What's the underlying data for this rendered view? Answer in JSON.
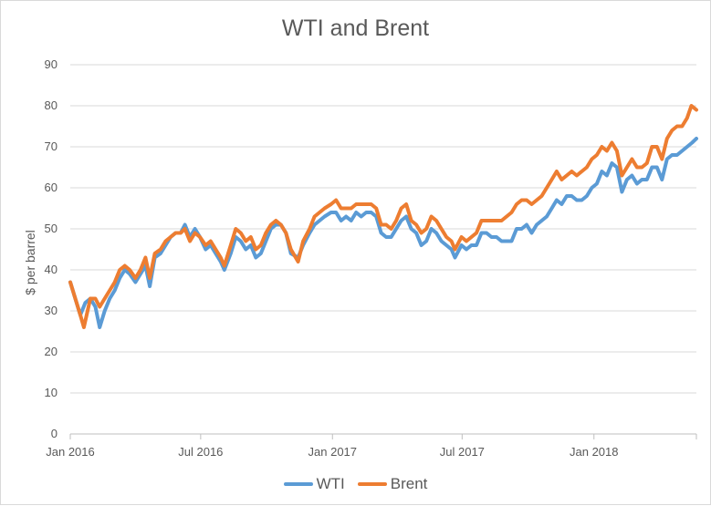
{
  "chart_data": {
    "type": "line",
    "title": "WTI and Brent",
    "xlabel": "",
    "ylabel": "$ per barrel",
    "ylim": [
      0,
      90
    ],
    "yticks": [
      "0",
      "10",
      "20",
      "30",
      "40",
      "50",
      "60",
      "70",
      "80",
      "90"
    ],
    "xticks": [
      "Jan 2016",
      "Jul 2016",
      "Jan 2017",
      "Jul 2017",
      "Jan 2018"
    ],
    "xtick_dates": [
      "2016-01-01",
      "2016-07-01",
      "2017-01-01",
      "2017-07-01",
      "2018-01-01"
    ],
    "xlim": [
      "2016-01-01",
      "2018-05-24"
    ],
    "grid": true,
    "legend_position": "bottom",
    "series": [
      {
        "name": "WTI",
        "color": "#5b9bd5",
        "points": [
          [
            "2016-01-01",
            37
          ],
          [
            "2016-01-08",
            33
          ],
          [
            "2016-01-15",
            29
          ],
          [
            "2016-01-22",
            32
          ],
          [
            "2016-01-29",
            33
          ],
          [
            "2016-02-05",
            31
          ],
          [
            "2016-02-11",
            26
          ],
          [
            "2016-02-18",
            30
          ],
          [
            "2016-02-25",
            33
          ],
          [
            "2016-03-03",
            35
          ],
          [
            "2016-03-10",
            38
          ],
          [
            "2016-03-17",
            40
          ],
          [
            "2016-03-24",
            39
          ],
          [
            "2016-04-01",
            37
          ],
          [
            "2016-04-08",
            39
          ],
          [
            "2016-04-15",
            41
          ],
          [
            "2016-04-21",
            36
          ],
          [
            "2016-04-28",
            43
          ],
          [
            "2016-05-06",
            44
          ],
          [
            "2016-05-13",
            46
          ],
          [
            "2016-05-20",
            48
          ],
          [
            "2016-05-27",
            49
          ],
          [
            "2016-06-03",
            49
          ],
          [
            "2016-06-09",
            51
          ],
          [
            "2016-06-16",
            48
          ],
          [
            "2016-06-23",
            50
          ],
          [
            "2016-06-30",
            48
          ],
          [
            "2016-07-08",
            45
          ],
          [
            "2016-07-15",
            46
          ],
          [
            "2016-07-22",
            44
          ],
          [
            "2016-07-29",
            42
          ],
          [
            "2016-08-03",
            40
          ],
          [
            "2016-08-12",
            44
          ],
          [
            "2016-08-19",
            48
          ],
          [
            "2016-08-26",
            47
          ],
          [
            "2016-09-02",
            45
          ],
          [
            "2016-09-09",
            46
          ],
          [
            "2016-09-16",
            43
          ],
          [
            "2016-09-23",
            44
          ],
          [
            "2016-09-30",
            47
          ],
          [
            "2016-10-07",
            50
          ],
          [
            "2016-10-14",
            51
          ],
          [
            "2016-10-21",
            51
          ],
          [
            "2016-10-28",
            49
          ],
          [
            "2016-11-04",
            44
          ],
          [
            "2016-11-14",
            43
          ],
          [
            "2016-11-21",
            46
          ],
          [
            "2016-11-30",
            49
          ],
          [
            "2016-12-07",
            51
          ],
          [
            "2016-12-14",
            52
          ],
          [
            "2016-12-21",
            53
          ],
          [
            "2016-12-30",
            54
          ],
          [
            "2017-01-06",
            54
          ],
          [
            "2017-01-13",
            52
          ],
          [
            "2017-01-20",
            53
          ],
          [
            "2017-01-27",
            52
          ],
          [
            "2017-02-03",
            54
          ],
          [
            "2017-02-10",
            53
          ],
          [
            "2017-02-17",
            54
          ],
          [
            "2017-02-24",
            54
          ],
          [
            "2017-03-03",
            53
          ],
          [
            "2017-03-10",
            49
          ],
          [
            "2017-03-17",
            48
          ],
          [
            "2017-03-24",
            48
          ],
          [
            "2017-03-31",
            50
          ],
          [
            "2017-04-07",
            52
          ],
          [
            "2017-04-14",
            53
          ],
          [
            "2017-04-21",
            50
          ],
          [
            "2017-04-28",
            49
          ],
          [
            "2017-05-05",
            46
          ],
          [
            "2017-05-12",
            47
          ],
          [
            "2017-05-19",
            50
          ],
          [
            "2017-05-26",
            49
          ],
          [
            "2017-06-02",
            47
          ],
          [
            "2017-06-09",
            46
          ],
          [
            "2017-06-16",
            45
          ],
          [
            "2017-06-21",
            43
          ],
          [
            "2017-06-30",
            46
          ],
          [
            "2017-07-07",
            45
          ],
          [
            "2017-07-14",
            46
          ],
          [
            "2017-07-21",
            46
          ],
          [
            "2017-07-28",
            49
          ],
          [
            "2017-08-04",
            49
          ],
          [
            "2017-08-11",
            48
          ],
          [
            "2017-08-18",
            48
          ],
          [
            "2017-08-25",
            47
          ],
          [
            "2017-09-01",
            47
          ],
          [
            "2017-09-08",
            47
          ],
          [
            "2017-09-15",
            50
          ],
          [
            "2017-09-22",
            50
          ],
          [
            "2017-09-29",
            51
          ],
          [
            "2017-10-06",
            49
          ],
          [
            "2017-10-13",
            51
          ],
          [
            "2017-10-20",
            52
          ],
          [
            "2017-10-27",
            53
          ],
          [
            "2017-11-03",
            55
          ],
          [
            "2017-11-10",
            57
          ],
          [
            "2017-11-17",
            56
          ],
          [
            "2017-11-24",
            58
          ],
          [
            "2017-12-01",
            58
          ],
          [
            "2017-12-08",
            57
          ],
          [
            "2017-12-15",
            57
          ],
          [
            "2017-12-22",
            58
          ],
          [
            "2017-12-29",
            60
          ],
          [
            "2018-01-05",
            61
          ],
          [
            "2018-01-12",
            64
          ],
          [
            "2018-01-19",
            63
          ],
          [
            "2018-01-26",
            66
          ],
          [
            "2018-02-02",
            65
          ],
          [
            "2018-02-09",
            59
          ],
          [
            "2018-02-16",
            62
          ],
          [
            "2018-02-23",
            63
          ],
          [
            "2018-03-02",
            61
          ],
          [
            "2018-03-09",
            62
          ],
          [
            "2018-03-16",
            62
          ],
          [
            "2018-03-23",
            65
          ],
          [
            "2018-03-30",
            65
          ],
          [
            "2018-04-06",
            62
          ],
          [
            "2018-04-13",
            67
          ],
          [
            "2018-04-20",
            68
          ],
          [
            "2018-04-27",
            68
          ],
          [
            "2018-05-04",
            69
          ],
          [
            "2018-05-11",
            70
          ],
          [
            "2018-05-18",
            71
          ],
          [
            "2018-05-24",
            72
          ]
        ]
      },
      {
        "name": "Brent",
        "color": "#ed7d31",
        "points": [
          [
            "2016-01-01",
            37
          ],
          [
            "2016-01-08",
            33
          ],
          [
            "2016-01-15",
            29
          ],
          [
            "2016-01-20",
            26
          ],
          [
            "2016-01-29",
            33
          ],
          [
            "2016-02-05",
            33
          ],
          [
            "2016-02-11",
            31
          ],
          [
            "2016-02-18",
            33
          ],
          [
            "2016-02-25",
            35
          ],
          [
            "2016-03-03",
            37
          ],
          [
            "2016-03-10",
            40
          ],
          [
            "2016-03-17",
            41
          ],
          [
            "2016-03-24",
            40
          ],
          [
            "2016-04-01",
            38
          ],
          [
            "2016-04-08",
            40
          ],
          [
            "2016-04-15",
            43
          ],
          [
            "2016-04-21",
            38
          ],
          [
            "2016-04-28",
            44
          ],
          [
            "2016-05-06",
            45
          ],
          [
            "2016-05-13",
            47
          ],
          [
            "2016-05-20",
            48
          ],
          [
            "2016-05-27",
            49
          ],
          [
            "2016-06-03",
            49
          ],
          [
            "2016-06-09",
            50
          ],
          [
            "2016-06-16",
            47
          ],
          [
            "2016-06-23",
            49
          ],
          [
            "2016-06-30",
            48
          ],
          [
            "2016-07-08",
            46
          ],
          [
            "2016-07-15",
            47
          ],
          [
            "2016-07-22",
            45
          ],
          [
            "2016-07-29",
            43
          ],
          [
            "2016-08-03",
            41
          ],
          [
            "2016-08-12",
            46
          ],
          [
            "2016-08-19",
            50
          ],
          [
            "2016-08-26",
            49
          ],
          [
            "2016-09-02",
            47
          ],
          [
            "2016-09-09",
            48
          ],
          [
            "2016-09-16",
            45
          ],
          [
            "2016-09-23",
            46
          ],
          [
            "2016-09-30",
            49
          ],
          [
            "2016-10-07",
            51
          ],
          [
            "2016-10-14",
            52
          ],
          [
            "2016-10-21",
            51
          ],
          [
            "2016-10-28",
            49
          ],
          [
            "2016-11-04",
            45
          ],
          [
            "2016-11-14",
            42
          ],
          [
            "2016-11-21",
            47
          ],
          [
            "2016-11-30",
            50
          ],
          [
            "2016-12-07",
            53
          ],
          [
            "2016-12-14",
            54
          ],
          [
            "2016-12-21",
            55
          ],
          [
            "2016-12-30",
            56
          ],
          [
            "2017-01-06",
            57
          ],
          [
            "2017-01-13",
            55
          ],
          [
            "2017-01-20",
            55
          ],
          [
            "2017-01-27",
            55
          ],
          [
            "2017-02-03",
            56
          ],
          [
            "2017-02-10",
            56
          ],
          [
            "2017-02-17",
            56
          ],
          [
            "2017-02-24",
            56
          ],
          [
            "2017-03-03",
            55
          ],
          [
            "2017-03-10",
            51
          ],
          [
            "2017-03-17",
            51
          ],
          [
            "2017-03-24",
            50
          ],
          [
            "2017-03-31",
            52
          ],
          [
            "2017-04-07",
            55
          ],
          [
            "2017-04-14",
            56
          ],
          [
            "2017-04-21",
            52
          ],
          [
            "2017-04-28",
            51
          ],
          [
            "2017-05-05",
            49
          ],
          [
            "2017-05-12",
            50
          ],
          [
            "2017-05-19",
            53
          ],
          [
            "2017-05-26",
            52
          ],
          [
            "2017-06-02",
            50
          ],
          [
            "2017-06-09",
            48
          ],
          [
            "2017-06-16",
            47
          ],
          [
            "2017-06-21",
            45
          ],
          [
            "2017-06-30",
            48
          ],
          [
            "2017-07-07",
            47
          ],
          [
            "2017-07-14",
            48
          ],
          [
            "2017-07-21",
            49
          ],
          [
            "2017-07-28",
            52
          ],
          [
            "2017-08-04",
            52
          ],
          [
            "2017-08-11",
            52
          ],
          [
            "2017-08-18",
            52
          ],
          [
            "2017-08-25",
            52
          ],
          [
            "2017-09-01",
            53
          ],
          [
            "2017-09-08",
            54
          ],
          [
            "2017-09-15",
            56
          ],
          [
            "2017-09-22",
            57
          ],
          [
            "2017-09-29",
            57
          ],
          [
            "2017-10-06",
            56
          ],
          [
            "2017-10-13",
            57
          ],
          [
            "2017-10-20",
            58
          ],
          [
            "2017-10-27",
            60
          ],
          [
            "2017-11-03",
            62
          ],
          [
            "2017-11-10",
            64
          ],
          [
            "2017-11-17",
            62
          ],
          [
            "2017-11-24",
            63
          ],
          [
            "2017-12-01",
            64
          ],
          [
            "2017-12-08",
            63
          ],
          [
            "2017-12-15",
            64
          ],
          [
            "2017-12-22",
            65
          ],
          [
            "2017-12-29",
            67
          ],
          [
            "2018-01-05",
            68
          ],
          [
            "2018-01-12",
            70
          ],
          [
            "2018-01-19",
            69
          ],
          [
            "2018-01-26",
            71
          ],
          [
            "2018-02-02",
            69
          ],
          [
            "2018-02-09",
            63
          ],
          [
            "2018-02-16",
            65
          ],
          [
            "2018-02-23",
            67
          ],
          [
            "2018-03-02",
            65
          ],
          [
            "2018-03-09",
            65
          ],
          [
            "2018-03-16",
            66
          ],
          [
            "2018-03-23",
            70
          ],
          [
            "2018-03-30",
            70
          ],
          [
            "2018-04-06",
            67
          ],
          [
            "2018-04-13",
            72
          ],
          [
            "2018-04-20",
            74
          ],
          [
            "2018-04-27",
            75
          ],
          [
            "2018-05-04",
            75
          ],
          [
            "2018-05-11",
            77
          ],
          [
            "2018-05-17",
            80
          ],
          [
            "2018-05-24",
            79
          ]
        ]
      }
    ]
  }
}
